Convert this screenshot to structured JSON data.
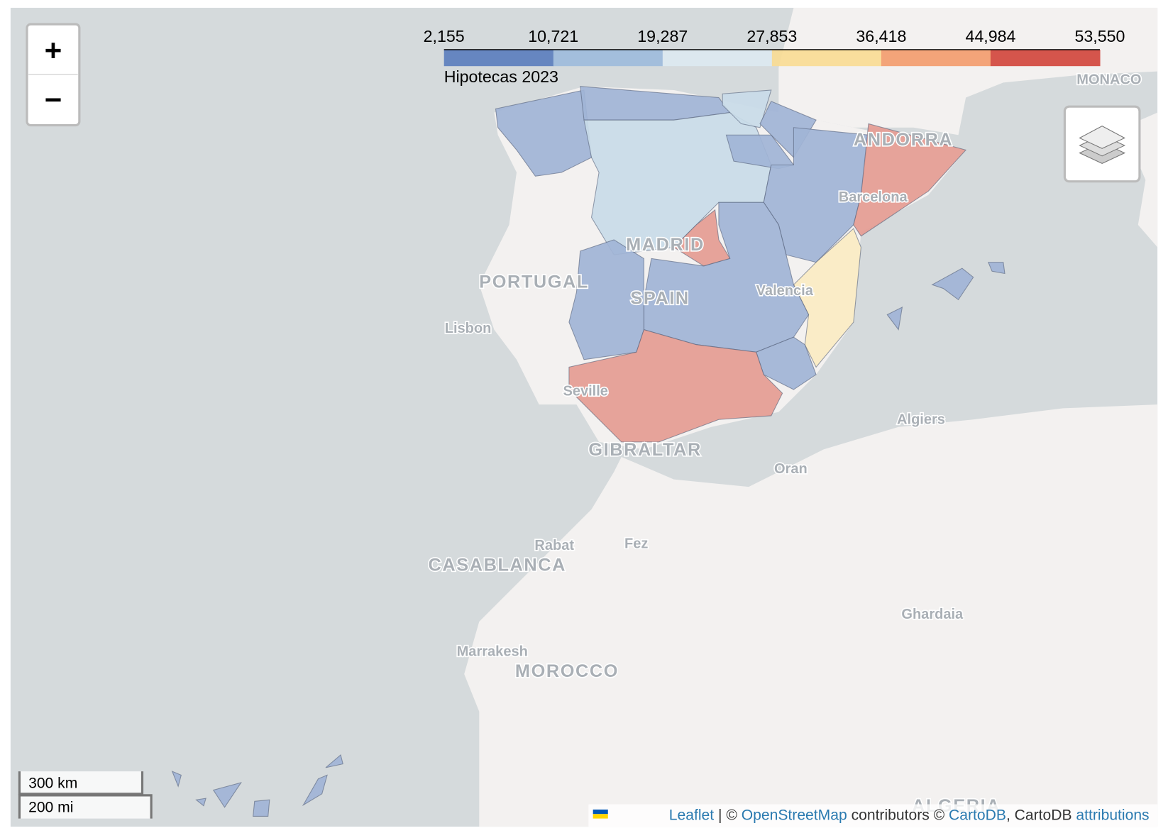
{
  "zoom_controls": {
    "zoom_in": "+",
    "zoom_out": "−"
  },
  "legend": {
    "ticks": [
      "2,155",
      "10,721",
      "19,287",
      "27,853",
      "36,418",
      "44,984",
      "53,550"
    ],
    "caption": "Hipotecas 2023",
    "colors": [
      "#5a7cbc",
      "#9dbadb",
      "#dde9f1",
      "#f9dc92",
      "#f39b6c",
      "#d2443a"
    ]
  },
  "place_labels": [
    "MONACO",
    "ANDORRA",
    "Barcelona",
    "MADRID",
    "PORTUGAL",
    "SPAIN",
    "Valencia",
    "Lisbon",
    "Seville",
    "GIBRALTAR",
    "Algiers",
    "Oran",
    "Rabat",
    "Fez",
    "CASABLANCA",
    "Ghardaia",
    "Marrakesh",
    "MOROCCO",
    "ALGERIA"
  ],
  "scale_bar": [
    "300 km",
    "200 mi"
  ],
  "attribution": {
    "leaflet": "Leaflet",
    "separator": "| ©",
    "osm": "OpenStreetMap",
    "contributors": "contributors ©",
    "cartodb": "CartoDB",
    "cartodb_text": ", CartoDB",
    "attributions": "attributions"
  }
}
